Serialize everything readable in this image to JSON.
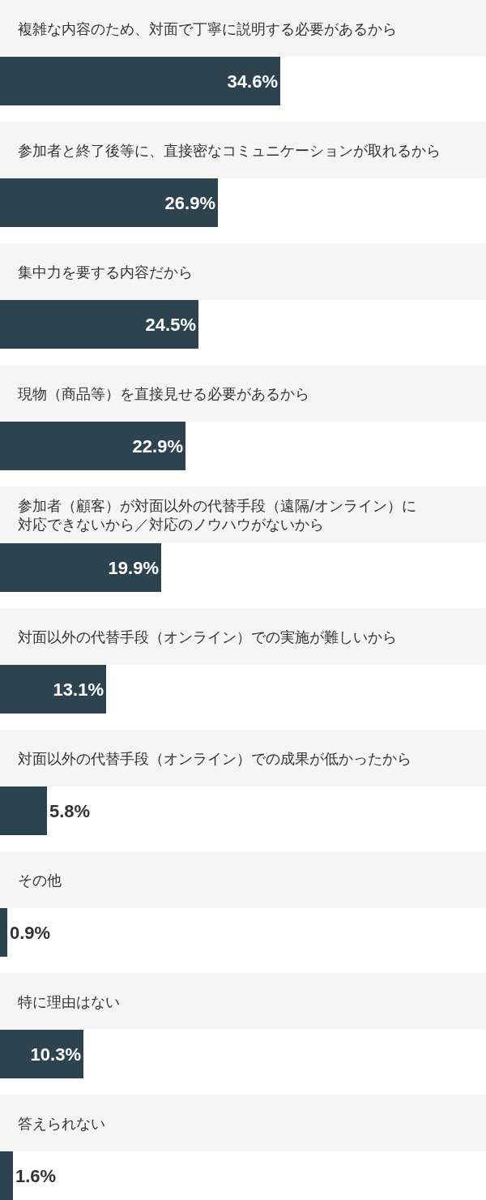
{
  "chart_data": {
    "type": "bar",
    "orientation": "horizontal",
    "categories": [
      "複雑な内容のため、対面で丁寧に説明する必要があるから",
      "参加者と終了後等に、直接密なコミュニケーションが取れるから",
      "集中力を要する内容だから",
      "現物（商品等）を直接見せる必要があるから",
      "参加者（顧客）が対面以外の代替手段（遠隔/オンライン）に対応できないから／対応のノウハウがないから",
      "対面以外の代替手段（オンライン）での実施が難しいから",
      "対面以外の代替手段（オンライン）での成果が低かったから",
      "その他",
      "特に理由はない",
      "答えられない"
    ],
    "values": [
      34.6,
      26.9,
      24.5,
      22.9,
      19.9,
      13.1,
      5.8,
      0.9,
      10.3,
      1.6
    ],
    "value_labels": [
      "34.6%",
      "26.9%",
      "24.5%",
      "22.9%",
      "19.9%",
      "13.1%",
      "5.8%",
      "0.9%",
      "10.3%",
      "1.6%"
    ],
    "color": "#2d4350",
    "xlim": [
      0,
      60
    ],
    "tick_labels": "y"
  }
}
